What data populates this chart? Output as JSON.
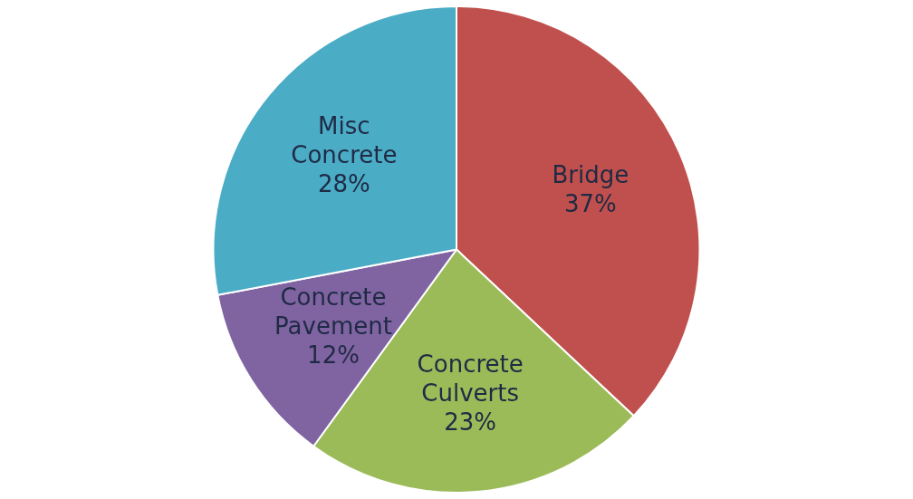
{
  "chart_data": {
    "type": "pie",
    "categories": [
      "Bridge",
      "Concrete Culverts",
      "Concrete Pavement",
      "Misc Concrete"
    ],
    "values": [
      37,
      23,
      12,
      28
    ],
    "colors": [
      "#c0504d",
      "#9bbb59",
      "#8064a2",
      "#4bacc6"
    ],
    "value_labels": [
      "37%",
      "23%",
      "12%",
      "28%"
    ],
    "legend": false
  }
}
